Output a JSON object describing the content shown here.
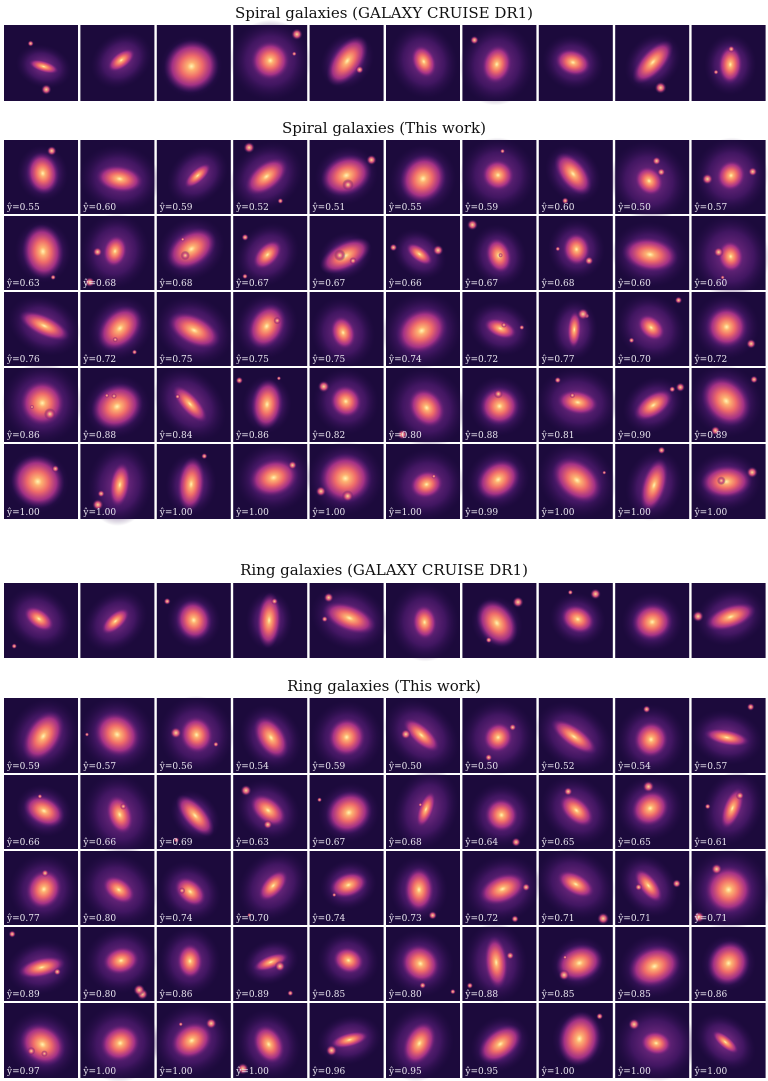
{
  "sections": [
    {
      "title": "Spiral galaxies (GALAXY CRUISE DR1)"
    },
    {
      "title": "Spiral galaxies (This work)",
      "rows": [
        [
          "ŷ=0.55",
          "ŷ=0.60",
          "ŷ=0.59",
          "ŷ=0.52",
          "ŷ=0.51",
          "ŷ=0.55",
          "ŷ=0.59",
          "ŷ=0.60",
          "ŷ=0.50",
          "ŷ=0.57"
        ],
        [
          "ŷ=0.63",
          "ŷ=0.68",
          "ŷ=0.68",
          "ŷ=0.67",
          "ŷ=0.67",
          "ŷ=0.66",
          "ŷ=0.67",
          "ŷ=0.68",
          "ŷ=0.60",
          "ŷ=0.60"
        ],
        [
          "ŷ=0.76",
          "ŷ=0.72",
          "ŷ=0.75",
          "ŷ=0.75",
          "ŷ=0.75",
          "ŷ=0.74",
          "ŷ=0.72",
          "ŷ=0.77",
          "ŷ=0.70",
          "ŷ=0.72"
        ],
        [
          "ŷ=0.86",
          "ŷ=0.88",
          "ŷ=0.84",
          "ŷ=0.86",
          "ŷ=0.82",
          "ŷ=0.80",
          "ŷ=0.88",
          "ŷ=0.81",
          "ŷ=0.90",
          "ŷ=0.89"
        ],
        [
          "ŷ=1.00",
          "ŷ=1.00",
          "ŷ=1.00",
          "ŷ=1.00",
          "ŷ=1.00",
          "ŷ=1.00",
          "ŷ=0.99",
          "ŷ=1.00",
          "ŷ=1.00",
          "ŷ=1.00"
        ]
      ]
    },
    {
      "title": "Ring galaxies (GALAXY CRUISE DR1)"
    },
    {
      "title": "Ring galaxies (This work)",
      "rows": [
        [
          "ŷ=0.59",
          "ŷ=0.57",
          "ŷ=0.56",
          "ŷ=0.54",
          "ŷ=0.59",
          "ŷ=0.50",
          "ŷ=0.50",
          "ŷ=0.52",
          "ŷ=0.54",
          "ŷ=0.57"
        ],
        [
          "ŷ=0.66",
          "ŷ=0.66",
          "ŷ=0.69",
          "ŷ=0.63",
          "ŷ=0.67",
          "ŷ=0.68",
          "ŷ=0.64",
          "ŷ=0.65",
          "ŷ=0.65",
          "ŷ=0.61"
        ],
        [
          "ŷ=0.77",
          "ŷ=0.80",
          "ŷ=0.74",
          "ŷ=0.70",
          "ŷ=0.74",
          "ŷ=0.73",
          "ŷ=0.72",
          "ŷ=0.71",
          "ŷ=0.71",
          "ŷ=0.71"
        ],
        [
          "ŷ=0.89",
          "ŷ=0.80",
          "ŷ=0.86",
          "ŷ=0.89",
          "ŷ=0.85",
          "ŷ=0.80",
          "ŷ=0.88",
          "ŷ=0.85",
          "ŷ=0.85",
          "ŷ=0.86"
        ],
        [
          "ŷ=0.97",
          "ŷ=1.00",
          "ŷ=1.00",
          "ŷ=1.00",
          "ŷ=0.96",
          "ŷ=0.95",
          "ŷ=0.95",
          "ŷ=1.00",
          "ŷ=1.00",
          "ŷ=1.00"
        ]
      ]
    }
  ]
}
